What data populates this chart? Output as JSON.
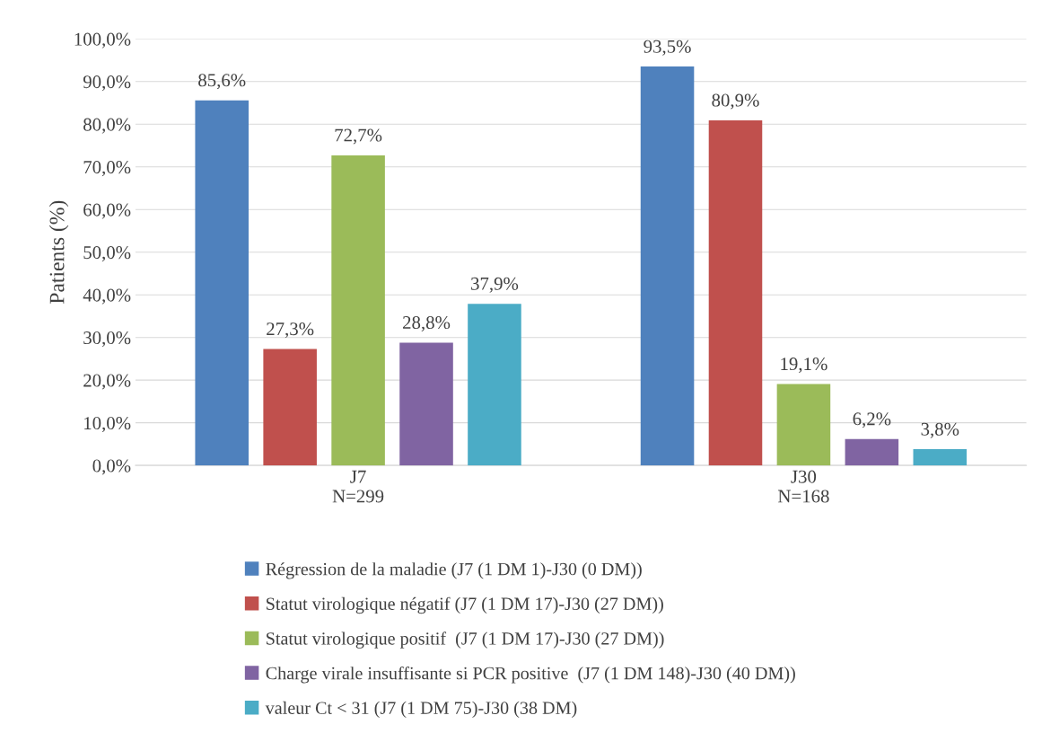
{
  "chart_data": {
    "type": "bar",
    "ylabel": "Patients (%)",
    "categories": [
      "J7\nN=299",
      "J30\nN=168"
    ],
    "series": [
      {
        "name": "Régression de la maladie (J7 (1 DM 1)-J30 (0 DM))",
        "color": "#4f81bd",
        "values": [
          85.6,
          93.5
        ],
        "value_labels": [
          "85,6%",
          "93,5%"
        ]
      },
      {
        "name": "Statut virologique négatif (J7 (1 DM 17)-J30 (27 DM))",
        "color": "#c0504d",
        "values": [
          27.3,
          80.9
        ],
        "value_labels": [
          "27,3%",
          "80,9%"
        ]
      },
      {
        "name": "Statut virologique positif  (J7 (1 DM 17)-J30 (27 DM))",
        "color": "#9bbb59",
        "values": [
          72.7,
          19.1
        ],
        "value_labels": [
          "72,7%",
          "19,1%"
        ]
      },
      {
        "name": "Charge virale insuffisante si PCR positive  (J7 (1 DM 148)-J30 (40 DM))",
        "color": "#8064a2",
        "values": [
          28.8,
          6.2
        ],
        "value_labels": [
          "28,8%",
          "6,2%"
        ]
      },
      {
        "name": "valeur Ct < 31 (J7 (1 DM 75)-J30 (38 DM)",
        "color": "#4bacc6",
        "values": [
          37.9,
          3.8
        ],
        "value_labels": [
          "37,9%",
          "3,8%"
        ]
      }
    ],
    "ylim": [
      0,
      100
    ],
    "yticks": [
      {
        "value": 0,
        "label": "0,0%"
      },
      {
        "value": 10,
        "label": "10,0%"
      },
      {
        "value": 20,
        "label": "20,0%"
      },
      {
        "value": 30,
        "label": "30,0%"
      },
      {
        "value": 40,
        "label": "40,0%"
      },
      {
        "value": 50,
        "label": "50,0%"
      },
      {
        "value": 60,
        "label": "60,0%"
      },
      {
        "value": 70,
        "label": "70,0%"
      },
      {
        "value": 80,
        "label": "80,0%"
      },
      {
        "value": 90,
        "label": "90,0%"
      },
      {
        "value": 100,
        "label": "100,0%"
      }
    ],
    "grid": "y",
    "legend": "bottom"
  }
}
